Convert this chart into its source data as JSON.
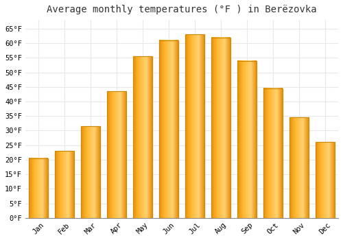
{
  "title": "Average monthly temperatures (°F ) in Berëzovka",
  "months": [
    "Jan",
    "Feb",
    "Mar",
    "Apr",
    "May",
    "Jun",
    "Jul",
    "Aug",
    "Sep",
    "Oct",
    "Nov",
    "Dec"
  ],
  "values": [
    20.5,
    23.0,
    31.5,
    43.5,
    55.5,
    61.0,
    63.0,
    62.0,
    54.0,
    44.5,
    34.5,
    26.0
  ],
  "bar_color_dark": "#E8900A",
  "bar_color_mid": "#FFB830",
  "bar_color_light": "#FFD070",
  "bar_edge_color": "#CC8800",
  "ylim": [
    0,
    68
  ],
  "yticks": [
    0,
    5,
    10,
    15,
    20,
    25,
    30,
    35,
    40,
    45,
    50,
    55,
    60,
    65
  ],
  "ytick_labels": [
    "0°F",
    "5°F",
    "10°F",
    "15°F",
    "20°F",
    "25°F",
    "30°F",
    "35°F",
    "40°F",
    "45°F",
    "50°F",
    "55°F",
    "60°F",
    "65°F"
  ],
  "background_color": "#ffffff",
  "grid_color": "#e8e8e8",
  "title_fontsize": 10,
  "tick_fontsize": 7.5,
  "bar_width": 0.72
}
